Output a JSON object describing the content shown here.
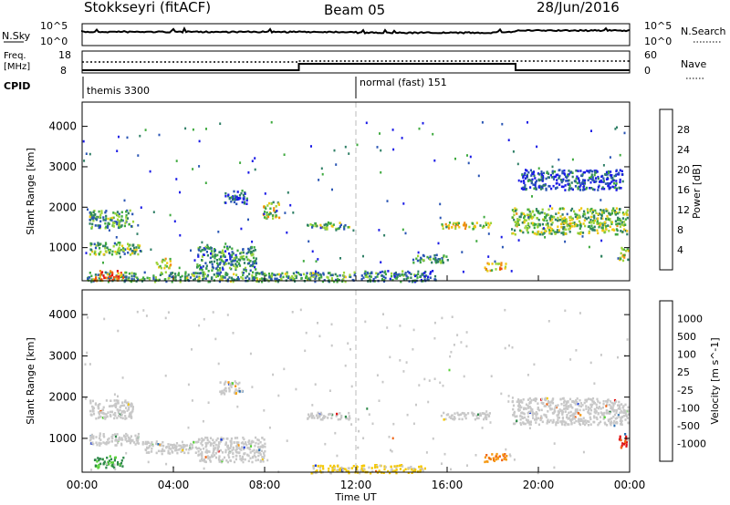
{
  "header": {
    "station": "Stokkseyri (fitACF)",
    "beam": "Beam 05",
    "date": "28/Jun/2016"
  },
  "top_panels": {
    "nsky_label": "N.Sky",
    "nsky_ticks": [
      "10^5",
      "10^0"
    ],
    "nsearch_label": "N.Search",
    "nsearch_ticks": [
      "10^5",
      "10^0"
    ],
    "freq_label": "Freq.",
    "freq_unit": "[MHz]",
    "freq_ticks": [
      "18",
      "8"
    ],
    "nave_label": "Nave",
    "nave_ticks": [
      "60",
      "0"
    ],
    "cpid_label": "CPID",
    "cpid_segments": [
      {
        "label": "themis 3300",
        "start_hour": 0
      },
      {
        "label": "normal (fast) 151",
        "start_hour": 12
      }
    ]
  },
  "colors": {
    "power_scale": [
      "#1a1ae6",
      "#2a55b4",
      "#2f7f66",
      "#3faa3f",
      "#9cd43a",
      "#f0c814",
      "#f08c14",
      "#f04614",
      "#e11414"
    ],
    "velocity_scale": [
      "#1f3fd6",
      "#2a6fb3",
      "#2f8a4a",
      "#5ad23a",
      "#c8c8c8",
      "#c8c8c8",
      "#f5c800",
      "#f59a14",
      "#f06414",
      "#e11414"
    ],
    "ground_scatter": "#c8c8c8",
    "dash_line": "#bbbbbb"
  },
  "chart_data": [
    {
      "type": "heatmap",
      "name": "power",
      "ylabel": "Slant Range [km]",
      "colorbar_label": "Power [dB]",
      "colorbar_ticks": [
        "28",
        "24",
        "20",
        "16",
        "12",
        "8",
        "4"
      ],
      "x_range_hours": [
        0,
        24
      ],
      "y_range_km": [
        180,
        4600
      ],
      "y_ticks": [
        "1000",
        "2000",
        "3000",
        "4000"
      ],
      "bands": [
        {
          "x": [
            0.3,
            2.2
          ],
          "y": [
            1500,
            1950
          ],
          "level": 0.35
        },
        {
          "x": [
            0.3,
            2.5
          ],
          "y": [
            850,
            1150
          ],
          "level": 0.4
        },
        {
          "x": [
            0.2,
            12.0
          ],
          "y": [
            180,
            420
          ],
          "level": 0.35
        },
        {
          "x": [
            0.5,
            1.8
          ],
          "y": [
            200,
            450
          ],
          "level": 0.85
        },
        {
          "x": [
            3.2,
            3.9
          ],
          "y": [
            520,
            750
          ],
          "level": 0.55
        },
        {
          "x": [
            5.0,
            7.6
          ],
          "y": [
            450,
            1050
          ],
          "level": 0.3
        },
        {
          "x": [
            6.2,
            7.2
          ],
          "y": [
            2100,
            2450
          ],
          "level": 0.2
        },
        {
          "x": [
            7.9,
            8.6
          ],
          "y": [
            1750,
            2150
          ],
          "level": 0.5
        },
        {
          "x": [
            9.8,
            11.7
          ],
          "y": [
            1480,
            1650
          ],
          "level": 0.4
        },
        {
          "x": [
            12.2,
            15.5
          ],
          "y": [
            180,
            450
          ],
          "level": 0.25
        },
        {
          "x": [
            14.4,
            16.0
          ],
          "y": [
            650,
            850
          ],
          "level": 0.3
        },
        {
          "x": [
            15.7,
            17.9
          ],
          "y": [
            1480,
            1650
          ],
          "level": 0.55
        },
        {
          "x": [
            17.6,
            18.6
          ],
          "y": [
            450,
            650
          ],
          "level": 0.6
        },
        {
          "x": [
            18.8,
            23.9
          ],
          "y": [
            1350,
            2000
          ],
          "level": 0.45
        },
        {
          "x": [
            19.2,
            23.7
          ],
          "y": [
            2450,
            2950
          ],
          "level": 0.15
        },
        {
          "x": [
            23.5,
            23.9
          ],
          "y": [
            700,
            1050
          ],
          "level": 0.5
        }
      ]
    },
    {
      "type": "heatmap",
      "name": "velocity",
      "ylabel": "Slant Range [km]",
      "colorbar_label": "Velocity [m s^-1]",
      "colorbar_ticks": [
        "1000",
        "500",
        "100",
        "25",
        "-25",
        "-100",
        "-500",
        "-1000"
      ],
      "x_range_hours": [
        0,
        24
      ],
      "y_range_km": [
        180,
        4600
      ],
      "y_ticks": [
        "1000",
        "2000",
        "3000",
        "4000"
      ],
      "x_ticks": [
        "00:00",
        "04:00",
        "08:00",
        "12:00",
        "16:00",
        "20:00",
        "00:00"
      ],
      "xlabel": "Time UT",
      "bands": [
        {
          "x": [
            0.3,
            2.2
          ],
          "y": [
            1500,
            1950
          ],
          "kind": "gs"
        },
        {
          "x": [
            0.3,
            2.5
          ],
          "y": [
            850,
            1150
          ],
          "kind": "gs"
        },
        {
          "x": [
            0.5,
            1.8
          ],
          "y": [
            300,
            600
          ],
          "kind": "green"
        },
        {
          "x": [
            2.6,
            5.0
          ],
          "y": [
            650,
            950
          ],
          "kind": "gs"
        },
        {
          "x": [
            6.0,
            7.0
          ],
          "y": [
            2100,
            2400
          ],
          "kind": "gs"
        },
        {
          "x": [
            5.0,
            8.0
          ],
          "y": [
            450,
            1050
          ],
          "kind": "gs"
        },
        {
          "x": [
            10.0,
            15.0
          ],
          "y": [
            180,
            380
          ],
          "kind": "yellow"
        },
        {
          "x": [
            9.8,
            11.7
          ],
          "y": [
            1480,
            1650
          ],
          "kind": "gs"
        },
        {
          "x": [
            15.7,
            17.9
          ],
          "y": [
            1480,
            1650
          ],
          "kind": "gs"
        },
        {
          "x": [
            17.6,
            18.6
          ],
          "y": [
            450,
            650
          ],
          "kind": "orange"
        },
        {
          "x": [
            18.8,
            23.9
          ],
          "y": [
            1350,
            2000
          ],
          "kind": "gs"
        },
        {
          "x": [
            23.5,
            23.9
          ],
          "y": [
            800,
            1150
          ],
          "kind": "red"
        }
      ]
    }
  ]
}
